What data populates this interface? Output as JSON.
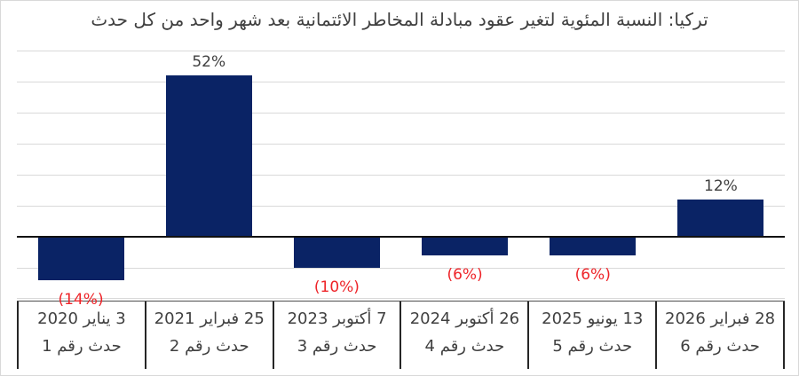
{
  "chart_data": {
    "type": "bar",
    "title": "تركيا: النسبة المئوية لتغير عقود مبادلة المخاطر الائتمانية بعد شهر واحد من كل حدث",
    "categories": [
      {
        "date": "3 يناير 2020",
        "event": "حدث رقم 1"
      },
      {
        "date": "25 فبراير 2021",
        "event": "حدث رقم 2"
      },
      {
        "date": "7 أكتوبر 2023",
        "event": "حدث رقم 3"
      },
      {
        "date": "26 أكتوبر 2024",
        "event": "حدث رقم 4"
      },
      {
        "date": "13 يونيو 2025",
        "event": "حدث رقم 5"
      },
      {
        "date": "28 فبراير 2026",
        "event": "حدث رقم 6"
      }
    ],
    "values": [
      -14,
      52,
      -10,
      -6,
      -6,
      12
    ],
    "data_labels": [
      "(14%)",
      "52%",
      "(10%)",
      "(6%)",
      "(6%)",
      "12%"
    ],
    "xlabel": "",
    "ylabel": "",
    "ylim": [
      -20,
      60
    ],
    "grid_step": 10,
    "y_tick_labels_visible": false,
    "legend": "none",
    "colors": {
      "bar": "#0a2365",
      "positive_label": "#404040",
      "negative_label": "#ee2429",
      "gridline": "#d9d9d9",
      "zero_axis": "#111111",
      "title_text": "#3f3f3f",
      "axis_text": "#404040",
      "divider": "#262626",
      "frame_border": "#d9d9d9"
    }
  }
}
